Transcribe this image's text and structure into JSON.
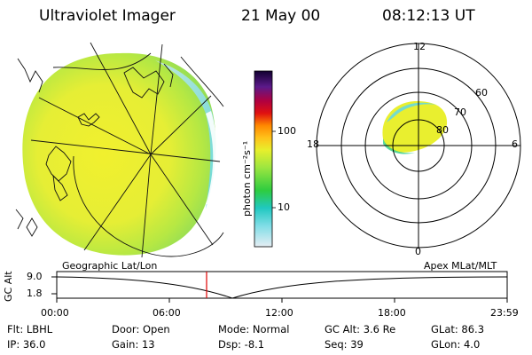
{
  "header": {
    "instrument": "Ultraviolet Imager",
    "date": "21 May 00",
    "time": "08:12:13 UT"
  },
  "colorbar": {
    "unit_label": "photon cm⁻²s⁻¹",
    "ticks": [
      "100",
      "10"
    ]
  },
  "polar_plot": {
    "mlt_top": "12",
    "mlt_left": "18",
    "mlt_right": "6",
    "mlt_bottom": "0",
    "lat_60": "60",
    "lat_70": "70",
    "lat_80": "80"
  },
  "orbit_panel": {
    "left_title": "Geographic Lat/Lon",
    "right_title": "Apex MLat/MLT",
    "axis_label": "GC Alt",
    "ytick_high": "9.0",
    "ytick_low": "1.8",
    "times": [
      "00:00",
      "06:00",
      "12:00",
      "18:00",
      "23:59"
    ]
  },
  "status": {
    "flt": "Flt: LBHL",
    "ip": "IP: 36.0",
    "door": "Door: Open",
    "gain": "Gain: 13",
    "mode": "Mode: Normal",
    "dsp": "Dsp:   -8.1",
    "gc_alt": "GC Alt: 3.6 Re",
    "seq": "Seq: 39",
    "glat": "GLat:  86.3",
    "glon": "GLon:   4.0"
  },
  "colors": {
    "aurora_yellow": "#e8ef33",
    "aurora_green": "#9fe04a",
    "edge_cyan": "#5fd7e6",
    "marker_red": "#e00000"
  }
}
